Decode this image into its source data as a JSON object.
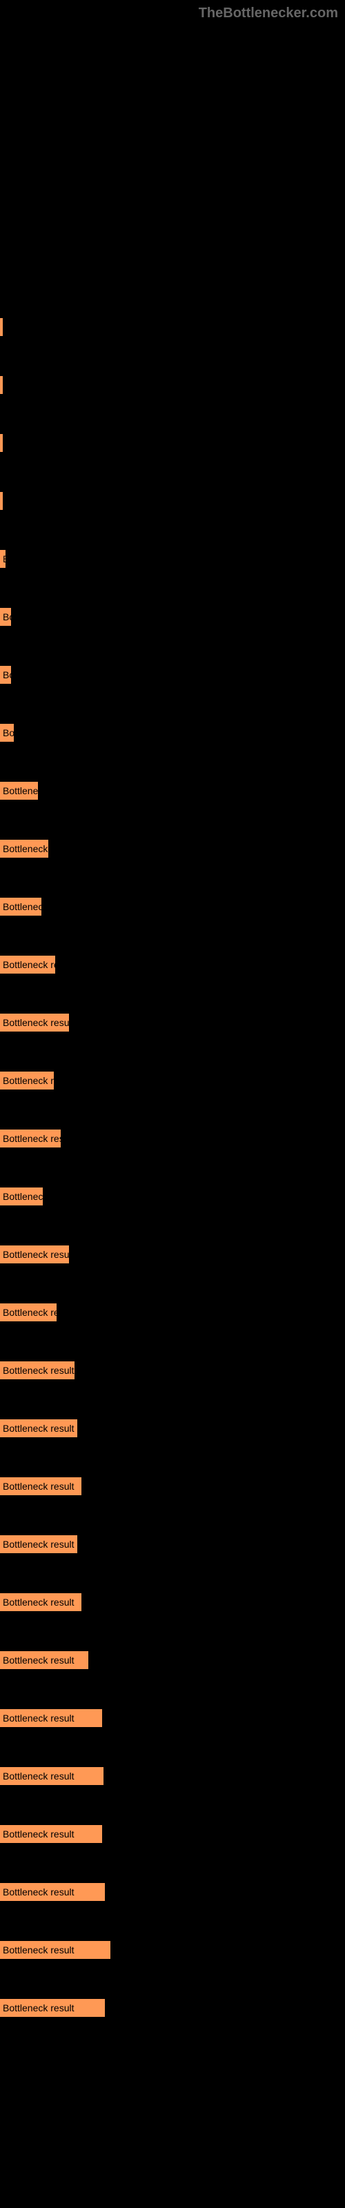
{
  "watermark": "TheBottlenecker.com",
  "chart": {
    "type": "bar",
    "bar_color": "#ff9955",
    "background_color": "#000000",
    "text_color": "#000000",
    "label": "Bottleneck result",
    "bars": [
      {
        "width": 2,
        "show_label": false
      },
      {
        "width": 2,
        "show_label": false
      },
      {
        "width": 3,
        "show_label": false
      },
      {
        "width": 4,
        "show_label": false
      },
      {
        "width": 8,
        "show_label": true,
        "label_text": "B"
      },
      {
        "width": 16,
        "show_label": true,
        "label_text": "Bo"
      },
      {
        "width": 16,
        "show_label": true,
        "label_text": "Bo"
      },
      {
        "width": 20,
        "show_label": true,
        "label_text": "Bo"
      },
      {
        "width": 55,
        "show_label": true,
        "label_text": "Bottlene"
      },
      {
        "width": 70,
        "show_label": true,
        "label_text": "Bottleneck r"
      },
      {
        "width": 60,
        "show_label": true,
        "label_text": "Bottlenec"
      },
      {
        "width": 80,
        "show_label": true,
        "label_text": "Bottleneck res"
      },
      {
        "width": 100,
        "show_label": true,
        "label_text": "Bottleneck result"
      },
      {
        "width": 78,
        "show_label": true,
        "label_text": "Bottleneck re"
      },
      {
        "width": 88,
        "show_label": true,
        "label_text": "Bottleneck resu"
      },
      {
        "width": 62,
        "show_label": true,
        "label_text": "Bottleneck"
      },
      {
        "width": 100,
        "show_label": true,
        "label_text": "Bottleneck result"
      },
      {
        "width": 82,
        "show_label": true,
        "label_text": "Bottleneck res"
      },
      {
        "width": 108,
        "show_label": true,
        "label_text": "Bottleneck result"
      },
      {
        "width": 112,
        "show_label": true,
        "label_text": "Bottleneck result"
      },
      {
        "width": 118,
        "show_label": true,
        "label_text": "Bottleneck result"
      },
      {
        "width": 112,
        "show_label": true,
        "label_text": "Bottleneck result"
      },
      {
        "width": 118,
        "show_label": true,
        "label_text": "Bottleneck result"
      },
      {
        "width": 128,
        "show_label": true,
        "label_text": "Bottleneck result"
      },
      {
        "width": 148,
        "show_label": true,
        "label_text": "Bottleneck result"
      },
      {
        "width": 150,
        "show_label": true,
        "label_text": "Bottleneck result"
      },
      {
        "width": 148,
        "show_label": true,
        "label_text": "Bottleneck result"
      },
      {
        "width": 152,
        "show_label": true,
        "label_text": "Bottleneck result"
      },
      {
        "width": 160,
        "show_label": true,
        "label_text": "Bottleneck result"
      },
      {
        "width": 152,
        "show_label": true,
        "label_text": "Bottleneck result"
      }
    ]
  }
}
